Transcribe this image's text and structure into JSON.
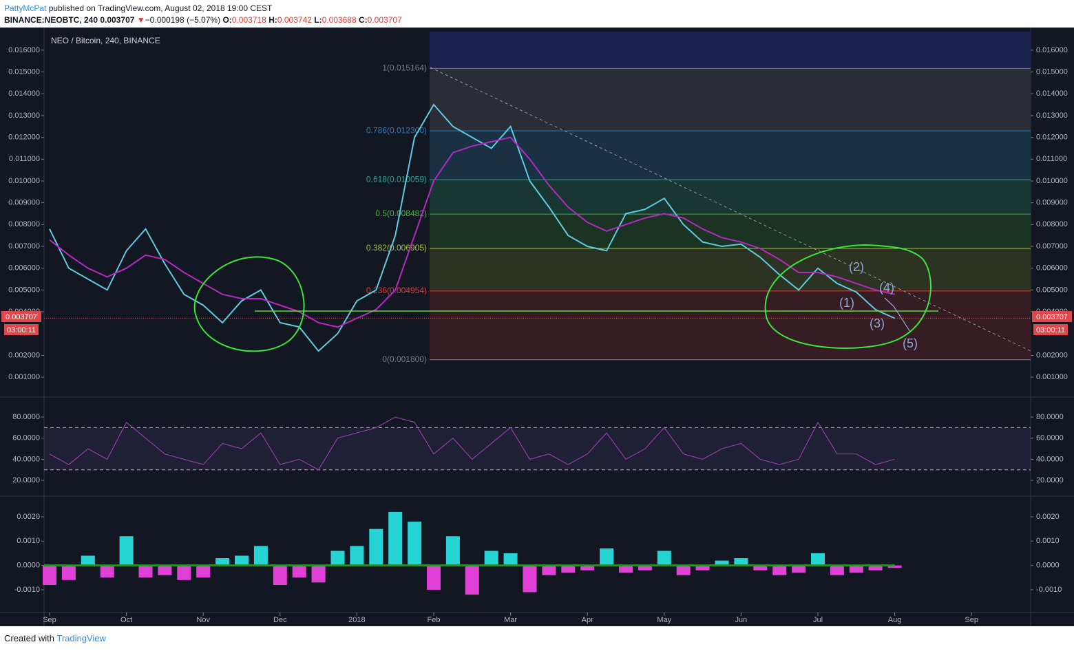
{
  "header": {
    "user": "PattyMcPat",
    "published": "published on TradingView.com, August 02, 2018 19:00 CEST",
    "symbol": "BINANCE:NEOBTC, 240",
    "last": "0.003707",
    "arrow": "▼",
    "change": "−0.000198 (−5.07%)",
    "o_label": "O:",
    "o": "0.003718",
    "h_label": "H:",
    "h": "0.003742",
    "l_label": "L:",
    "l": "0.003688",
    "c_label": "C:",
    "c": "0.003707"
  },
  "footer": {
    "created": "Created with",
    "brand": "TradingView"
  },
  "chart_data": [
    {
      "type": "line",
      "title": "NEO / Bitcoin, 240, BINANCE",
      "categories": [
        "Sep",
        null,
        null,
        null,
        "Oct",
        null,
        null,
        null,
        "Nov",
        null,
        null,
        null,
        "Dec",
        null,
        null,
        null,
        "2018",
        null,
        null,
        null,
        "Feb",
        null,
        null,
        null,
        "Mar",
        null,
        null,
        null,
        "Apr",
        null,
        null,
        null,
        "May",
        null,
        null,
        null,
        "Jun",
        null,
        null,
        null,
        "Jul",
        null,
        null,
        null,
        "Aug",
        null,
        null,
        null,
        "Sep",
        null,
        null,
        null
      ],
      "series": [
        {
          "color": "#5ecbe0",
          "values": [
            0.0078,
            0.006,
            0.0055,
            0.005,
            0.0068,
            0.0078,
            0.0062,
            0.0048,
            0.0043,
            0.0035,
            0.0045,
            0.005,
            0.0035,
            0.0033,
            0.0022,
            0.003,
            0.0045,
            0.005,
            0.0075,
            0.012,
            0.0135,
            0.0125,
            0.012,
            0.0115,
            0.0125,
            0.01,
            0.0088,
            0.0075,
            0.007,
            0.0068,
            0.0085,
            0.0087,
            0.0092,
            0.008,
            0.0072,
            0.007,
            0.0071,
            0.0065,
            0.0057,
            0.005,
            0.006,
            0.0053,
            0.0049,
            0.0041,
            0.0037,
            null,
            null,
            null,
            null,
            null,
            null,
            null
          ]
        },
        {
          "color": "#b52ac1",
          "values": [
            0.0073,
            0.0066,
            0.006,
            0.0056,
            0.006,
            0.0066,
            0.0064,
            0.0058,
            0.0053,
            0.0048,
            0.0046,
            0.0046,
            0.0043,
            0.004,
            0.0035,
            0.0033,
            0.0037,
            0.0041,
            0.005,
            0.0075,
            0.01,
            0.0113,
            0.0116,
            0.0118,
            0.012,
            0.011,
            0.0098,
            0.0088,
            0.0081,
            0.0077,
            0.008,
            0.0083,
            0.0085,
            0.0083,
            0.0078,
            0.0074,
            0.0072,
            0.0069,
            0.0064,
            0.0058,
            0.0058,
            0.0056,
            0.0053,
            0.005,
            0.0048,
            null,
            null,
            null,
            null,
            null,
            null,
            null
          ]
        }
      ],
      "ylim": [
        0.00015,
        0.01685
      ],
      "yticks": [
        {
          "value": 0.016,
          "label": "0.016000"
        },
        {
          "value": 0.015,
          "label": "0.015000"
        },
        {
          "value": 0.014,
          "label": "0.014000"
        },
        {
          "value": 0.013,
          "label": "0.013000"
        },
        {
          "value": 0.012,
          "label": "0.012000"
        },
        {
          "value": 0.011,
          "label": "0.011000"
        },
        {
          "value": 0.01,
          "label": "0.010000"
        },
        {
          "value": 0.009,
          "label": "0.009000"
        },
        {
          "value": 0.008,
          "label": "0.008000"
        },
        {
          "value": 0.007,
          "label": "0.007000"
        },
        {
          "value": 0.006,
          "label": "0.006000"
        },
        {
          "value": 0.005,
          "label": "0.005000"
        },
        {
          "value": 0.004,
          "label": "0.004000"
        },
        {
          "value": 0.002,
          "label": "0.002000"
        },
        {
          "value": 0.001,
          "label": "0.001000"
        }
      ],
      "last_price": 0.003707,
      "countdown": "03:00:11",
      "fib": [
        {
          "value": 0.015164,
          "label": "1(0.015164)",
          "color": "#787b86",
          "fill": "#2a2d36"
        },
        {
          "value": 0.0123,
          "label": "0.786(0.012300)",
          "color": "#3179b5",
          "fill": "#1a3043"
        },
        {
          "value": 0.010059,
          "label": "0.618(0.010059)",
          "color": "#26a69a",
          "fill": "#183632"
        },
        {
          "value": 0.008482,
          "label": "0.5(0.008482)",
          "color": "#4caf50",
          "fill": "#1b3323"
        },
        {
          "value": 0.006905,
          "label": "0.382(0.006905)",
          "color": "#a5c23a",
          "fill": "#2c3322"
        },
        {
          "value": 0.004954,
          "label": "0.236(0.004954)",
          "color": "#e53935",
          "fill": "#361d24"
        },
        {
          "value": 0.0018,
          "label": "0(0.001800)",
          "color": "#787b86",
          "fill": null
        }
      ],
      "annotations": [
        "(1)",
        "(2)",
        "(3)",
        "(4)",
        "(5)"
      ]
    },
    {
      "type": "line",
      "series": [
        {
          "color": "#8e3fa6",
          "values": [
            45,
            35,
            50,
            40,
            75,
            60,
            45,
            40,
            35,
            55,
            50,
            65,
            35,
            40,
            30,
            60,
            65,
            70,
            80,
            75,
            45,
            60,
            40,
            55,
            70,
            40,
            45,
            35,
            45,
            65,
            40,
            50,
            70,
            45,
            40,
            50,
            55,
            40,
            35,
            40,
            75,
            45,
            45,
            35,
            40,
            null,
            null,
            null,
            null,
            null,
            null,
            null
          ]
        }
      ],
      "ylim": [
        5.7,
        98.3
      ],
      "yticks": [
        {
          "value": 80,
          "label": "80.0000"
        },
        {
          "value": 60,
          "label": "60.0000"
        },
        {
          "value": 40,
          "label": "40.0000"
        },
        {
          "value": 20,
          "label": "20.0000"
        }
      ],
      "bands": [
        70,
        30
      ]
    },
    {
      "type": "histogram",
      "pos_color": "#26d4d6",
      "neg_color": "#e040d6",
      "series": [
        {
          "values": [
            -0.0008,
            -0.0006,
            0.0004,
            -0.0005,
            0.0012,
            -0.0005,
            -0.0004,
            -0.0006,
            -0.0005,
            0.0003,
            0.0004,
            0.0008,
            -0.0008,
            -0.0005,
            -0.0007,
            0.0006,
            0.0008,
            0.0015,
            0.0022,
            0.0018,
            -0.001,
            0.0012,
            -0.0012,
            0.0006,
            0.0005,
            -0.0011,
            -0.0004,
            -0.0003,
            -0.0002,
            0.0007,
            -0.0003,
            -0.0002,
            0.0006,
            -0.0004,
            -0.0002,
            0.0002,
            0.0003,
            -0.0002,
            -0.0004,
            -0.0003,
            0.0005,
            -0.0004,
            -0.0003,
            -0.0002,
            -0.0001,
            null,
            null,
            null,
            null,
            null,
            null,
            null
          ]
        }
      ],
      "ylim": [
        -0.001934,
        0.00282
      ],
      "yticks": [
        {
          "value": 0.002,
          "label": "0.0020"
        },
        {
          "value": 0.001,
          "label": "0.0010"
        },
        {
          "value": 0,
          "label": "0.0000"
        },
        {
          "value": -0.001,
          "label": "-0.0010"
        }
      ]
    }
  ]
}
